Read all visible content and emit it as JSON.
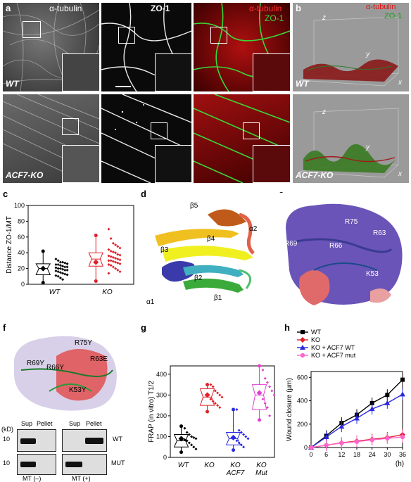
{
  "panel_a": {
    "letter": "a",
    "col_labels": [
      "α-tubulin",
      "ZO-1"
    ],
    "merge_labels": [
      "α-tubulin",
      "ZO-1"
    ],
    "row_labels": [
      "WT",
      "ACF7-KO"
    ]
  },
  "panel_b": {
    "letter": "b",
    "legend": [
      "α-tubulin",
      "ZO-1"
    ],
    "axes": [
      "z",
      "y",
      "x"
    ],
    "row_labels": [
      "WT",
      "ACF7-KO"
    ]
  },
  "chart_data": [
    {
      "panel": "c",
      "type": "scatter",
      "ylabel": "Distance ZO-1/MT",
      "yticks": [
        0,
        20,
        40,
        60,
        80,
        100
      ],
      "ylim": [
        0,
        100
      ],
      "categories": [
        "WT",
        "KO"
      ],
      "colors": [
        "#000000",
        "#e0202a"
      ],
      "boxes": [
        {
          "group": "WT",
          "whisker_low": 2,
          "q1": 12,
          "median": 20,
          "mean": 20,
          "q3": 26,
          "whisker_high": 42
        },
        {
          "group": "KO",
          "whisker_low": 4,
          "q1": 23,
          "median": 32,
          "mean": 28,
          "q3": 40,
          "whisker_high": 62
        }
      ],
      "points": {
        "WT": [
          32,
          30,
          28,
          28,
          27,
          26,
          25,
          25,
          24,
          23,
          22,
          22,
          21,
          20,
          20,
          19,
          18,
          18,
          17,
          16,
          15,
          14,
          13,
          12,
          11,
          10,
          8,
          6
        ],
        "KO": [
          70,
          58,
          52,
          50,
          48,
          46,
          44,
          42,
          41,
          40,
          38,
          37,
          36,
          35,
          34,
          33,
          32,
          31,
          30,
          30,
          29,
          28,
          27,
          26,
          25,
          24,
          22,
          20,
          18,
          16,
          14
        ]
      }
    },
    {
      "panel": "g",
      "type": "scatter",
      "ylabel": "FRAP (in vitro) T1/2",
      "yticks": [
        0,
        100,
        200,
        300,
        400
      ],
      "ylim": [
        0,
        440
      ],
      "categories": [
        "WT",
        "KO",
        "KO ACF7",
        "KO Mut"
      ],
      "colors": [
        "#000000",
        "#e0202a",
        "#2a2ae0",
        "#e040d0"
      ],
      "boxes": [
        {
          "group": "WT",
          "whisker_low": 25,
          "q1": 50,
          "median": 80,
          "mean": 90,
          "q3": 110,
          "whisker_high": 150
        },
        {
          "group": "KO",
          "whisker_low": 220,
          "q1": 250,
          "median": 290,
          "mean": 300,
          "q3": 330,
          "whisker_high": 350
        },
        {
          "group": "KO ACF7",
          "whisker_low": 35,
          "q1": 60,
          "median": 90,
          "mean": 95,
          "q3": 120,
          "whisker_high": 230
        },
        {
          "group": "KO Mut",
          "whisker_low": 180,
          "q1": 230,
          "median": 300,
          "mean": 310,
          "q3": 350,
          "whisker_high": 440
        }
      ],
      "points": {
        "WT": [
          140,
          120,
          110,
          100,
          95,
          90,
          85,
          80,
          70,
          60,
          50,
          40
        ],
        "KO": [
          350,
          340,
          320,
          310,
          300,
          290,
          280,
          270,
          260,
          250,
          240
        ],
        "KO ACF7": [
          230,
          130,
          120,
          110,
          100,
          90,
          80,
          70,
          60,
          50
        ],
        "KO Mut": [
          420,
          380,
          360,
          340,
          320,
          300,
          280,
          260,
          240,
          200
        ]
      }
    },
    {
      "panel": "h",
      "type": "line",
      "ylabel": "Wound closure (µm)",
      "xlabel": "(h)",
      "x": [
        0,
        6,
        12,
        18,
        24,
        30,
        36
      ],
      "xticks": [
        0,
        6,
        12,
        18,
        24,
        30,
        36
      ],
      "yticks": [
        0,
        200,
        400,
        600
      ],
      "ylim": [
        0,
        650
      ],
      "xlim": [
        0,
        36
      ],
      "legend": "top-left",
      "series": [
        {
          "name": "WT",
          "color": "#000000",
          "marker": "square",
          "values": [
            0,
            100,
            210,
            280,
            380,
            450,
            580
          ]
        },
        {
          "name": "KO",
          "color": "#e0202a",
          "marker": "diamond",
          "values": [
            0,
            20,
            40,
            55,
            70,
            85,
            110
          ]
        },
        {
          "name": "KO + ACF7 WT",
          "color": "#2a2ae0",
          "marker": "triangle",
          "values": [
            0,
            90,
            180,
            250,
            330,
            380,
            455
          ]
        },
        {
          "name": "KO + ACF7 mut",
          "color": "#ff66cc",
          "marker": "circle",
          "values": [
            0,
            20,
            38,
            50,
            65,
            78,
            90
          ]
        }
      ]
    }
  ],
  "panel_d": {
    "letter": "d",
    "labels": [
      "β5",
      "α2",
      "β4",
      "β3",
      "β2",
      "α1",
      "β1"
    ]
  },
  "panel_e": {
    "letter": "e",
    "residues": [
      "R75",
      "R69",
      "R66",
      "R63",
      "K53"
    ]
  },
  "panel_f": {
    "letter": "f",
    "residues": [
      "R75Y",
      "R69Y",
      "R66Y",
      "R63E",
      "K53Y"
    ],
    "kd_label": "(kD)",
    "marker": "10",
    "lane_labels": [
      "Sup",
      "Pellet",
      "Sup",
      "Pellet"
    ],
    "row_labels": [
      "WT",
      "MUT"
    ],
    "condition_labels": [
      "MT (–)",
      "MT (+)"
    ]
  },
  "letters": {
    "c": "c",
    "g": "g",
    "h": "h"
  }
}
